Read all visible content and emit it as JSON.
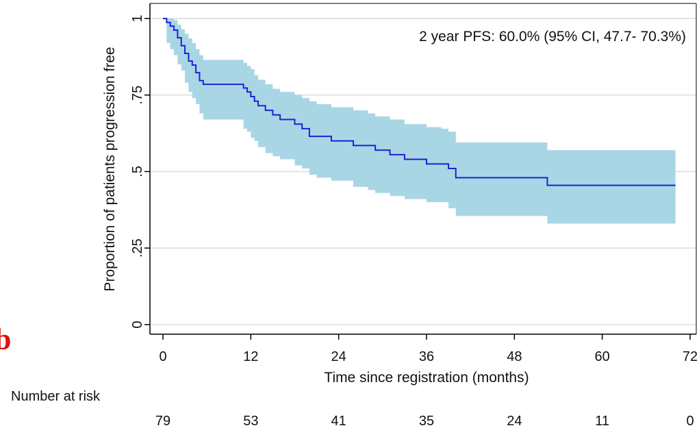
{
  "panel_letter": "b",
  "chart_data": {
    "type": "line",
    "title": "",
    "annotation": "2 year PFS: 60.0% (95% CI, 47.7- 70.3%)",
    "xlabel": "Time since registration (months)",
    "ylabel": "Proportion of patients progression free",
    "xlim": [
      0,
      72
    ],
    "ylim": [
      0,
      1
    ],
    "x_ticks": [
      0,
      12,
      24,
      36,
      48,
      60,
      72
    ],
    "x_tick_labels": [
      "0",
      "12",
      "24",
      "36",
      "48",
      "60",
      "72"
    ],
    "y_ticks": [
      0,
      0.25,
      0.5,
      0.75,
      1
    ],
    "y_tick_labels": [
      "0",
      ".25",
      ".5",
      ".75",
      "1"
    ],
    "grid": "horizontal",
    "colors": {
      "line": "#1f1fd6",
      "ci_band": "#a9d6e5",
      "grid": "#dcdcdc"
    },
    "series": [
      {
        "x": [
          0,
          0.5,
          1,
          1.5,
          2,
          2.5,
          3,
          3.5,
          4,
          4.5,
          5,
          5.5,
          6,
          11,
          11.5,
          12,
          12.5,
          13,
          14,
          15,
          16,
          17,
          18,
          19,
          20,
          21,
          22,
          23,
          24,
          26,
          28,
          29,
          31,
          33,
          36,
          38,
          39,
          40,
          52,
          52.5,
          70
        ],
        "y": [
          1,
          0.987,
          0.975,
          0.962,
          0.937,
          0.911,
          0.886,
          0.861,
          0.848,
          0.823,
          0.797,
          0.785,
          0.785,
          0.773,
          0.76,
          0.745,
          0.73,
          0.715,
          0.7,
          0.685,
          0.67,
          0.67,
          0.655,
          0.64,
          0.615,
          0.615,
          0.615,
          0.6,
          0.6,
          0.585,
          0.585,
          0.57,
          0.555,
          0.54,
          0.525,
          0.525,
          0.51,
          0.48,
          0.48,
          0.455,
          0.455
        ],
        "lower": [
          1,
          0.92,
          0.9,
          0.88,
          0.85,
          0.83,
          0.79,
          0.76,
          0.74,
          0.72,
          0.69,
          0.67,
          0.67,
          0.64,
          0.63,
          0.61,
          0.6,
          0.58,
          0.56,
          0.55,
          0.54,
          0.54,
          0.52,
          0.51,
          0.49,
          0.48,
          0.48,
          0.47,
          0.47,
          0.45,
          0.44,
          0.43,
          0.42,
          0.41,
          0.4,
          0.4,
          0.38,
          0.355,
          0.355,
          0.33,
          0.33
        ],
        "upper": [
          1,
          1.0,
          1.0,
          0.995,
          0.98,
          0.965,
          0.95,
          0.935,
          0.92,
          0.9,
          0.88,
          0.865,
          0.865,
          0.855,
          0.845,
          0.835,
          0.815,
          0.8,
          0.785,
          0.77,
          0.76,
          0.76,
          0.75,
          0.74,
          0.73,
          0.72,
          0.72,
          0.71,
          0.71,
          0.7,
          0.69,
          0.68,
          0.67,
          0.655,
          0.645,
          0.64,
          0.63,
          0.595,
          0.595,
          0.57,
          0.57
        ]
      }
    ],
    "risk_table": {
      "label": "Number at risk",
      "times": [
        0,
        12,
        24,
        36,
        48,
        60,
        72
      ],
      "counts": [
        "79",
        "53",
        "41",
        "35",
        "24",
        "11",
        "0"
      ]
    }
  }
}
